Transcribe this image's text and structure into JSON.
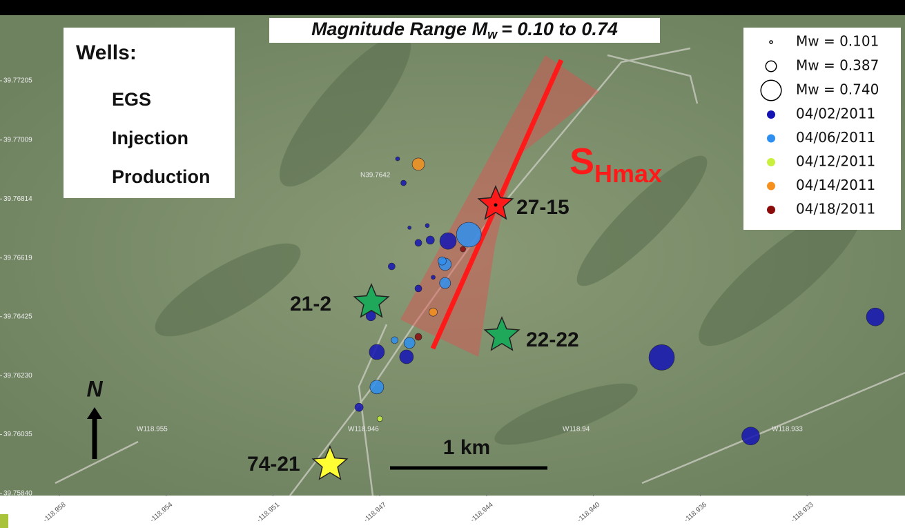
{
  "chart_data": {
    "type": "scatter",
    "title": {
      "main": "Magnitude Range M",
      "sub": "w",
      "rest": "= 0.10 to 0.74"
    },
    "xlim": [
      -118.96,
      -118.9295
    ],
    "ylim": [
      39.7584,
      39.77415
    ],
    "xticks": [
      {
        "value": -118.958,
        "label": "-118.958"
      },
      {
        "value": -118.9544,
        "label": "-118.954"
      },
      {
        "value": -118.9508,
        "label": "-118.951"
      },
      {
        "value": -118.9472,
        "label": "-118.947"
      },
      {
        "value": -118.9436,
        "label": "-118.944"
      },
      {
        "value": -118.94,
        "label": "-118.940"
      },
      {
        "value": -118.9364,
        "label": "-118.936"
      },
      {
        "value": -118.9328,
        "label": "-118.933"
      }
    ],
    "yticks": [
      39.77205,
      39.77009,
      39.76814,
      39.76619,
      39.76425,
      {
        "value": 39.7623,
        "label": "39.76230"
      },
      39.76035,
      {
        "value": 39.7584,
        "label": "39.75840"
      }
    ],
    "size_legend": [
      {
        "label": "Mw = 0.101",
        "value": 0.101
      },
      {
        "label": "Mw = 0.387",
        "value": 0.387
      },
      {
        "label": "Mw = 0.740",
        "value": 0.74
      }
    ],
    "series": [
      {
        "name": "04/02/2011",
        "color": "#1414b4",
        "x": [
          -118.9466,
          -118.9464,
          -118.9462,
          -118.9456,
          -118.9459,
          -118.9455,
          -118.9449,
          -118.9468,
          -118.9459,
          -118.9454,
          -118.9475,
          -118.9473,
          -118.9463,
          -118.9479,
          -118.9377,
          -118.9305,
          -118.9347
        ],
        "y": [
          39.76947,
          39.76867,
          39.76719,
          39.76726,
          39.76669,
          39.76678,
          39.76675,
          39.76591,
          39.76518,
          39.76555,
          39.76427,
          39.76308,
          39.76292,
          39.76125,
          39.7629,
          39.76424,
          39.7603
        ],
        "size": [
          0.12,
          0.16,
          0.1,
          0.12,
          0.2,
          0.24,
          0.48,
          0.2,
          0.2,
          0.12,
          0.28,
          0.44,
          0.4,
          0.24,
          0.74,
          0.52,
          0.52
        ]
      },
      {
        "name": "04/06/2011",
        "color": "#2f8ff0",
        "x": [
          -118.9473,
          -118.945,
          -118.945,
          -118.9442,
          -118.9462,
          -118.9467,
          -118.9451
        ],
        "y": [
          39.76192,
          39.76598,
          39.76536,
          39.76696,
          39.76338,
          39.76347,
          39.76609
        ],
        "size": [
          0.4,
          0.36,
          0.32,
          0.72,
          0.32,
          0.2,
          0.24
        ]
      },
      {
        "name": "04/12/2011",
        "color": "#c8f03c",
        "x": [
          -118.9472
        ],
        "y": [
          39.76087
        ],
        "size": [
          0.16
        ]
      },
      {
        "name": "04/14/2011",
        "color": "#f5901e",
        "x": [
          -118.9459,
          -118.9454
        ],
        "y": [
          39.76929,
          39.7644
        ],
        "size": [
          0.36,
          0.24
        ]
      },
      {
        "name": "04/18/2011",
        "color": "#8b0a0a",
        "x": [
          -118.9459,
          -118.9444
        ],
        "y": [
          39.76358,
          39.76648
        ],
        "size": [
          0.2,
          0.16
        ]
      }
    ],
    "wells_legend": {
      "title": "Wells:",
      "items": [
        "EGS",
        "Injection",
        "Production"
      ]
    },
    "wells": [
      "27-15",
      "21-2",
      "22-22",
      "74-21"
    ],
    "stress": {
      "main": "S",
      "sub": "Hmax"
    },
    "scale_bar": "1 km",
    "north": "N",
    "map_labels": [
      "N39.7642",
      "W118.955",
      "W118.946",
      "W118.94",
      "W118.933"
    ]
  }
}
